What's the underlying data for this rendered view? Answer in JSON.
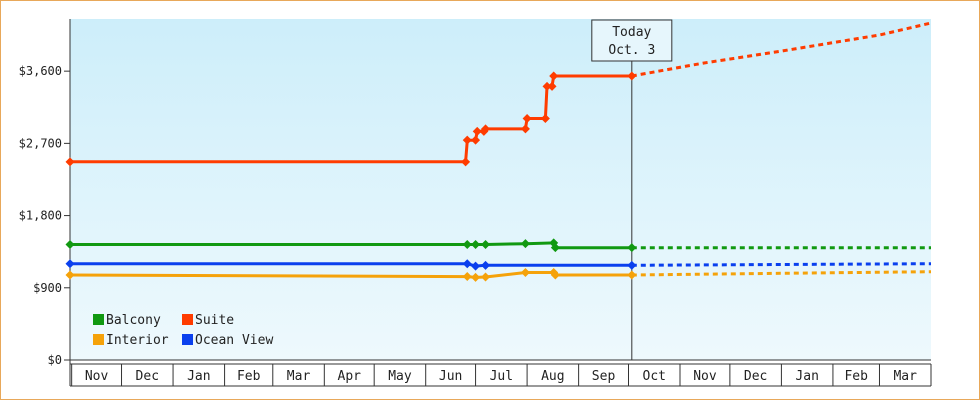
{
  "chart_data": {
    "type": "line",
    "title": "",
    "xlabel": "",
    "ylabel": "",
    "ylim": [
      0,
      4250
    ],
    "x_range": [
      "2015-10-31",
      "2017-04-01"
    ],
    "y_ticks": [
      0,
      900,
      1800,
      2700,
      3600
    ],
    "y_tick_labels": [
      "$0",
      "$900",
      "$1,800",
      "$2,700",
      "$3,600"
    ],
    "months": [
      {
        "label": "Nov",
        "start": "2015-11-01"
      },
      {
        "label": "Dec",
        "start": "2015-12-01"
      },
      {
        "label": "Jan",
        "start": "2016-01-01"
      },
      {
        "label": "Feb",
        "start": "2016-02-01"
      },
      {
        "label": "Mar",
        "start": "2016-03-01"
      },
      {
        "label": "Apr",
        "start": "2016-04-01"
      },
      {
        "label": "May",
        "start": "2016-05-01"
      },
      {
        "label": "Jun",
        "start": "2016-06-01"
      },
      {
        "label": "Jul",
        "start": "2016-07-01"
      },
      {
        "label": "Aug",
        "start": "2016-08-01"
      },
      {
        "label": "Sep",
        "start": "2016-09-01"
      },
      {
        "label": "Oct",
        "start": "2016-10-01"
      },
      {
        "label": "Nov",
        "start": "2016-11-01"
      },
      {
        "label": "Dec",
        "start": "2016-12-01"
      },
      {
        "label": "Jan",
        "start": "2017-01-01"
      },
      {
        "label": "Feb",
        "start": "2017-02-01"
      },
      {
        "label": "Mar",
        "start": "2017-03-01"
      }
    ],
    "today": {
      "date": "2016-10-03",
      "label_line1": "Today",
      "label_line2": "Oct. 3"
    },
    "legend": {
      "placement": "bottom-left"
    },
    "series": [
      {
        "name": "Suite",
        "color": "#ff3c00",
        "points": [
          {
            "x": "2015-10-31",
            "y": 2470
          },
          {
            "x": "2016-06-25",
            "y": 2470
          },
          {
            "x": "2016-06-26",
            "y": 2740
          },
          {
            "x": "2016-07-01",
            "y": 2740
          },
          {
            "x": "2016-07-02",
            "y": 2850
          },
          {
            "x": "2016-07-06",
            "y": 2850
          },
          {
            "x": "2016-07-07",
            "y": 2880
          },
          {
            "x": "2016-07-31",
            "y": 2880
          },
          {
            "x": "2016-08-01",
            "y": 3010
          },
          {
            "x": "2016-08-12",
            "y": 3010
          },
          {
            "x": "2016-08-13",
            "y": 3410
          },
          {
            "x": "2016-08-16",
            "y": 3410
          },
          {
            "x": "2016-08-17",
            "y": 3540
          },
          {
            "x": "2016-10-03",
            "y": 3540
          }
        ],
        "forecast": [
          {
            "x": "2016-10-03",
            "y": 3540
          },
          {
            "x": "2016-11-15",
            "y": 3700
          },
          {
            "x": "2017-01-01",
            "y": 3850
          },
          {
            "x": "2017-03-01",
            "y": 4050
          },
          {
            "x": "2017-04-01",
            "y": 4200
          }
        ]
      },
      {
        "name": "Balcony",
        "color": "#119911",
        "points": [
          {
            "x": "2015-10-31",
            "y": 1440
          },
          {
            "x": "2016-06-26",
            "y": 1440
          },
          {
            "x": "2016-07-01",
            "y": 1440
          },
          {
            "x": "2016-07-07",
            "y": 1440
          },
          {
            "x": "2016-07-31",
            "y": 1450
          },
          {
            "x": "2016-08-17",
            "y": 1460
          },
          {
            "x": "2016-08-18",
            "y": 1400
          },
          {
            "x": "2016-10-03",
            "y": 1400
          }
        ],
        "forecast": [
          {
            "x": "2016-10-03",
            "y": 1400
          },
          {
            "x": "2017-04-01",
            "y": 1400
          }
        ]
      },
      {
        "name": "Ocean View",
        "color": "#0a40ee",
        "points": [
          {
            "x": "2015-10-31",
            "y": 1200
          },
          {
            "x": "2016-06-26",
            "y": 1200
          },
          {
            "x": "2016-07-01",
            "y": 1170
          },
          {
            "x": "2016-07-07",
            "y": 1180
          },
          {
            "x": "2016-10-03",
            "y": 1180
          }
        ],
        "forecast": [
          {
            "x": "2016-10-03",
            "y": 1180
          },
          {
            "x": "2017-04-01",
            "y": 1200
          }
        ]
      },
      {
        "name": "Interior",
        "color": "#f5a20a",
        "points": [
          {
            "x": "2015-10-31",
            "y": 1060
          },
          {
            "x": "2016-06-26",
            "y": 1040
          },
          {
            "x": "2016-07-01",
            "y": 1030
          },
          {
            "x": "2016-07-07",
            "y": 1035
          },
          {
            "x": "2016-07-31",
            "y": 1090
          },
          {
            "x": "2016-08-17",
            "y": 1090
          },
          {
            "x": "2016-08-18",
            "y": 1060
          },
          {
            "x": "2016-10-03",
            "y": 1060
          }
        ],
        "forecast": [
          {
            "x": "2016-10-03",
            "y": 1060
          },
          {
            "x": "2017-01-01",
            "y": 1080
          },
          {
            "x": "2017-04-01",
            "y": 1100
          }
        ]
      }
    ],
    "legend_items": [
      {
        "name": "Balcony",
        "color": "#119911"
      },
      {
        "name": "Suite",
        "color": "#ff3c00"
      },
      {
        "name": "Interior",
        "color": "#f5a20a"
      },
      {
        "name": "Ocean View",
        "color": "#0a40ee"
      }
    ]
  }
}
